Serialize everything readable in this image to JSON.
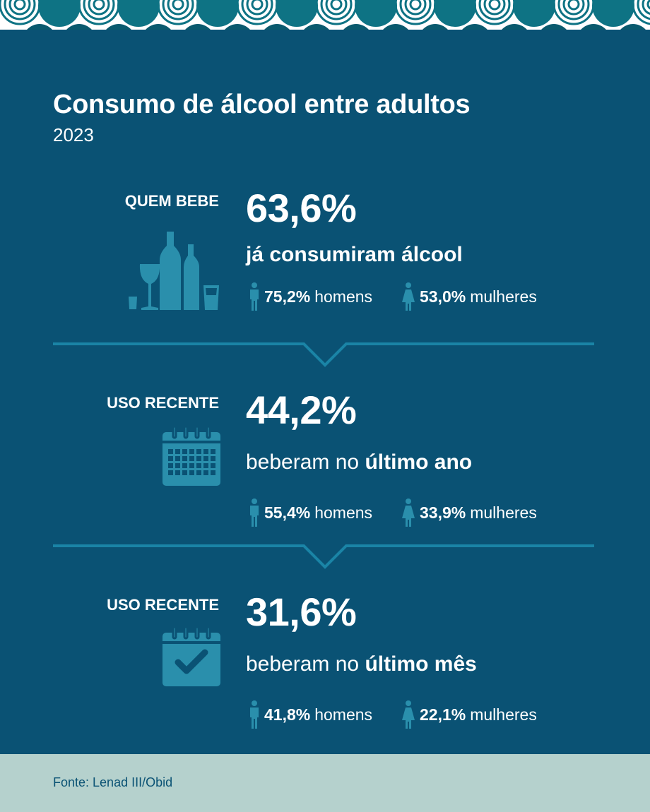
{
  "header": {
    "title": "Consumo de álcool entre adultos",
    "year": "2023"
  },
  "sections": [
    {
      "label": "QUEM BEBE",
      "icon": "bottles-glasses-icon",
      "value": "63,6%",
      "desc_pre": "",
      "desc_bold": "já consumiram álcool",
      "men_pct": "75,2%",
      "men_label": "homens",
      "women_pct": "53,0%",
      "women_label": "mulheres"
    },
    {
      "label": "USO RECENTE",
      "icon": "calendar-grid-icon",
      "value": "44,2%",
      "desc_pre": "beberam no ",
      "desc_bold": "último ano",
      "men_pct": "55,4%",
      "men_label": "homens",
      "women_pct": "33,9%",
      "women_label": "mulheres"
    },
    {
      "label": "USO RECENTE",
      "icon": "calendar-check-icon",
      "value": "31,6%",
      "desc_pre": "beberam no ",
      "desc_bold": "último mês",
      "men_pct": "41,8%",
      "men_label": "homens",
      "women_pct": "22,1%",
      "women_label": "mulheres"
    }
  ],
  "footer": {
    "source": "Fonte: Lenad III/Obid"
  },
  "colors": {
    "background": "#0a5274",
    "accent": "#1a84a6",
    "icon": "#2a8fac",
    "footer": "#b5d1cd",
    "text": "#ffffff"
  }
}
